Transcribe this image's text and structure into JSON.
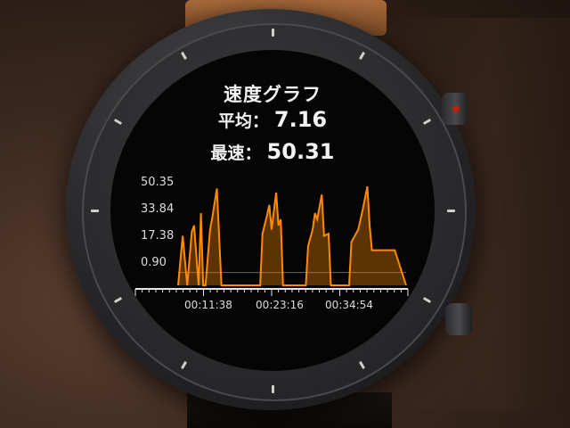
{
  "screen": {
    "title": "速度グラフ",
    "avg_label": "平均：",
    "avg_value": "7.16",
    "max_label": "最速：",
    "max_value": "50.31"
  },
  "chart_data": {
    "type": "area",
    "y_tick_labels": [
      "50.35",
      "33.84",
      "17.38",
      "0.90"
    ],
    "x_tick_labels": [
      "00:11:38",
      "00:23:16",
      "00:34:54"
    ],
    "ylim": [
      0.9,
      50.35
    ],
    "average_line": 7.16,
    "series": [
      {
        "x": [
          0.0,
          0.02,
          0.04,
          0.06,
          0.07,
          0.09,
          0.1,
          0.11,
          0.12,
          0.14,
          0.15,
          0.17,
          0.19,
          0.21,
          0.23,
          0.25,
          0.27,
          0.28,
          0.29,
          0.36,
          0.37,
          0.39,
          0.4,
          0.41,
          0.43,
          0.44,
          0.45,
          0.46,
          0.48,
          0.56,
          0.57,
          0.59,
          0.6,
          0.61,
          0.63,
          0.64,
          0.66,
          0.67,
          0.75,
          0.76,
          0.78,
          0.79,
          0.81,
          0.83,
          0.84,
          0.85,
          0.87,
          0.9,
          0.95,
          1.0
        ],
        "y": [
          0.9,
          25,
          0.9,
          27,
          30,
          0.9,
          36,
          0.9,
          0.9,
          28,
          34,
          48,
          0.9,
          0.9,
          0.9,
          0.9,
          0.9,
          0.9,
          0.9,
          0.9,
          26,
          35,
          40,
          28,
          46,
          30,
          33,
          0.9,
          0.9,
          0.9,
          20,
          28,
          36,
          33,
          45,
          25,
          26,
          0.9,
          0.9,
          22,
          26,
          28,
          38,
          49,
          30,
          18,
          18,
          18,
          18,
          0.9
        ],
        "color": "#ff8a00"
      }
    ]
  },
  "colors": {
    "accent": "#ff8a00",
    "screen": "#050505"
  }
}
